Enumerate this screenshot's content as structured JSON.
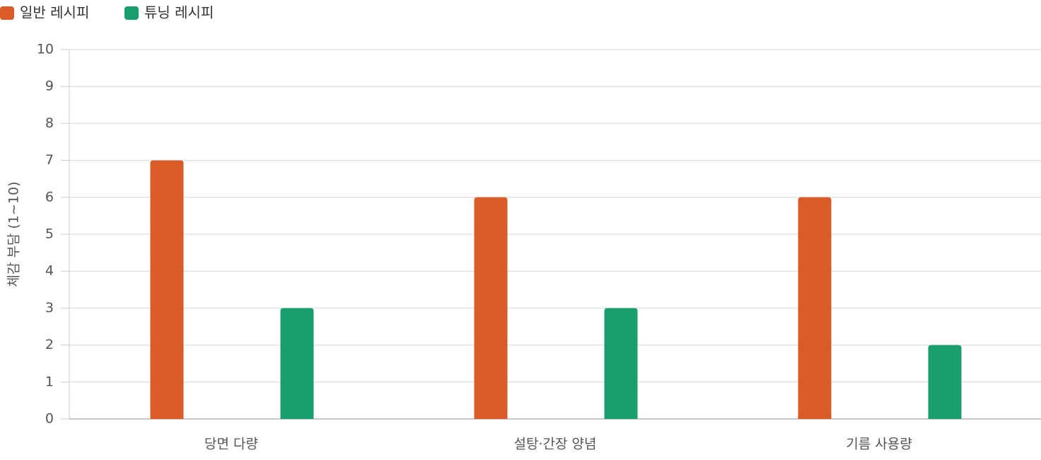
{
  "chart_data": {
    "type": "bar",
    "y_label": "체감 부담 (1~10)",
    "categories": [
      "당면 다량",
      "설탕·간장 양념",
      "기름 사용량"
    ],
    "series": [
      {
        "name": "일반 레시피",
        "color": "#d95b27",
        "values": [
          7,
          6,
          6
        ]
      },
      {
        "name": "튜닝 레시피",
        "color": "#1b9e6e",
        "values": [
          3,
          3,
          2
        ]
      }
    ],
    "ylim": [
      0,
      10
    ],
    "yticks": [
      0,
      1,
      2,
      3,
      4,
      5,
      6,
      7,
      8,
      9,
      10
    ],
    "grid": true,
    "legend": "top-left"
  }
}
